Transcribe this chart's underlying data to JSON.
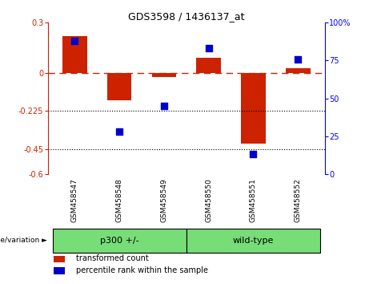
{
  "title": "GDS3598 / 1436137_at",
  "samples": [
    "GSM458547",
    "GSM458548",
    "GSM458549",
    "GSM458550",
    "GSM458551",
    "GSM458552"
  ],
  "bar_values": [
    0.22,
    -0.16,
    -0.025,
    0.09,
    -0.42,
    0.03
  ],
  "percentile_values": [
    88,
    28,
    45,
    83,
    13,
    76
  ],
  "ylim_left": [
    -0.6,
    0.3
  ],
  "ylim_right": [
    0,
    100
  ],
  "yticks_left": [
    0.3,
    0.0,
    -0.225,
    -0.45,
    -0.6
  ],
  "yticks_left_labels": [
    "0.3",
    "0",
    "-0.225",
    "-0.45",
    "-0.6"
  ],
  "yticks_right": [
    100,
    75,
    50,
    25,
    0
  ],
  "yticks_right_labels": [
    "100%",
    "75",
    "50",
    "25",
    "0"
  ],
  "bar_color": "#CC2200",
  "scatter_color": "#0000CC",
  "dotted_lines": [
    -0.225,
    -0.45
  ],
  "background_color": "#ffffff",
  "plot_bg": "#ffffff",
  "genotype_label": "genotype/variation ►",
  "legend_tc": "transformed count",
  "legend_pr": "percentile rank within the sample",
  "bar_width": 0.55,
  "scatter_size": 28,
  "label_area_bg": "#C8C8C8",
  "green_color": "#77DD77",
  "group_split": 3,
  "p300_label": "p300 +/-",
  "wt_label": "wild-type"
}
